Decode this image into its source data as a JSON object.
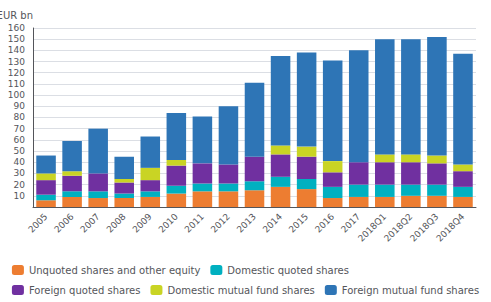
{
  "chart_data": {
    "type": "bar",
    "stacked": true,
    "ylabel": "EUR bn",
    "categories": [
      "2005",
      "2006",
      "2007",
      "2008",
      "2009",
      "2010",
      "2011",
      "2012",
      "2013",
      "2014",
      "2015",
      "2016",
      "2017",
      "2018Q1",
      "2018Q2",
      "2018Q3",
      "2018Q4"
    ],
    "series": [
      {
        "name": "Unquoted shares and other equity",
        "color": "#ED7D31",
        "values": [
          6,
          9,
          8,
          8,
          9,
          12,
          14,
          14,
          15,
          18,
          16,
          8,
          9,
          9,
          10,
          10,
          9
        ]
      },
      {
        "name": "Domestic quoted shares",
        "color": "#00B0C0",
        "values": [
          5,
          5,
          6,
          4,
          5,
          7,
          7,
          7,
          8,
          9,
          9,
          10,
          11,
          11,
          10,
          10,
          9
        ]
      },
      {
        "name": "Foreign quoted shares",
        "color": "#7030A0",
        "values": [
          13,
          14,
          16,
          10,
          10,
          18,
          18,
          17,
          22,
          20,
          20,
          13,
          20,
          20,
          20,
          19,
          14
        ]
      },
      {
        "name": "Domestic mutual fund shares",
        "color": "#C9D424",
        "values": [
          6,
          4,
          0,
          3,
          11,
          5,
          0,
          0,
          0,
          8,
          9,
          10,
          0,
          7,
          7,
          7,
          6
        ]
      },
      {
        "name": "Foreign mutual fund shares",
        "color": "#2E75B6",
        "values": [
          16,
          27,
          40,
          20,
          28,
          42,
          42,
          52,
          66,
          80,
          84,
          90,
          100,
          103,
          103,
          106,
          99
        ]
      }
    ],
    "ylim": [
      0,
      160
    ],
    "yticks": [
      10,
      20,
      30,
      40,
      50,
      60,
      70,
      80,
      90,
      100,
      110,
      120,
      130,
      140,
      150,
      160
    ],
    "grid": true,
    "legend": "bottom"
  }
}
